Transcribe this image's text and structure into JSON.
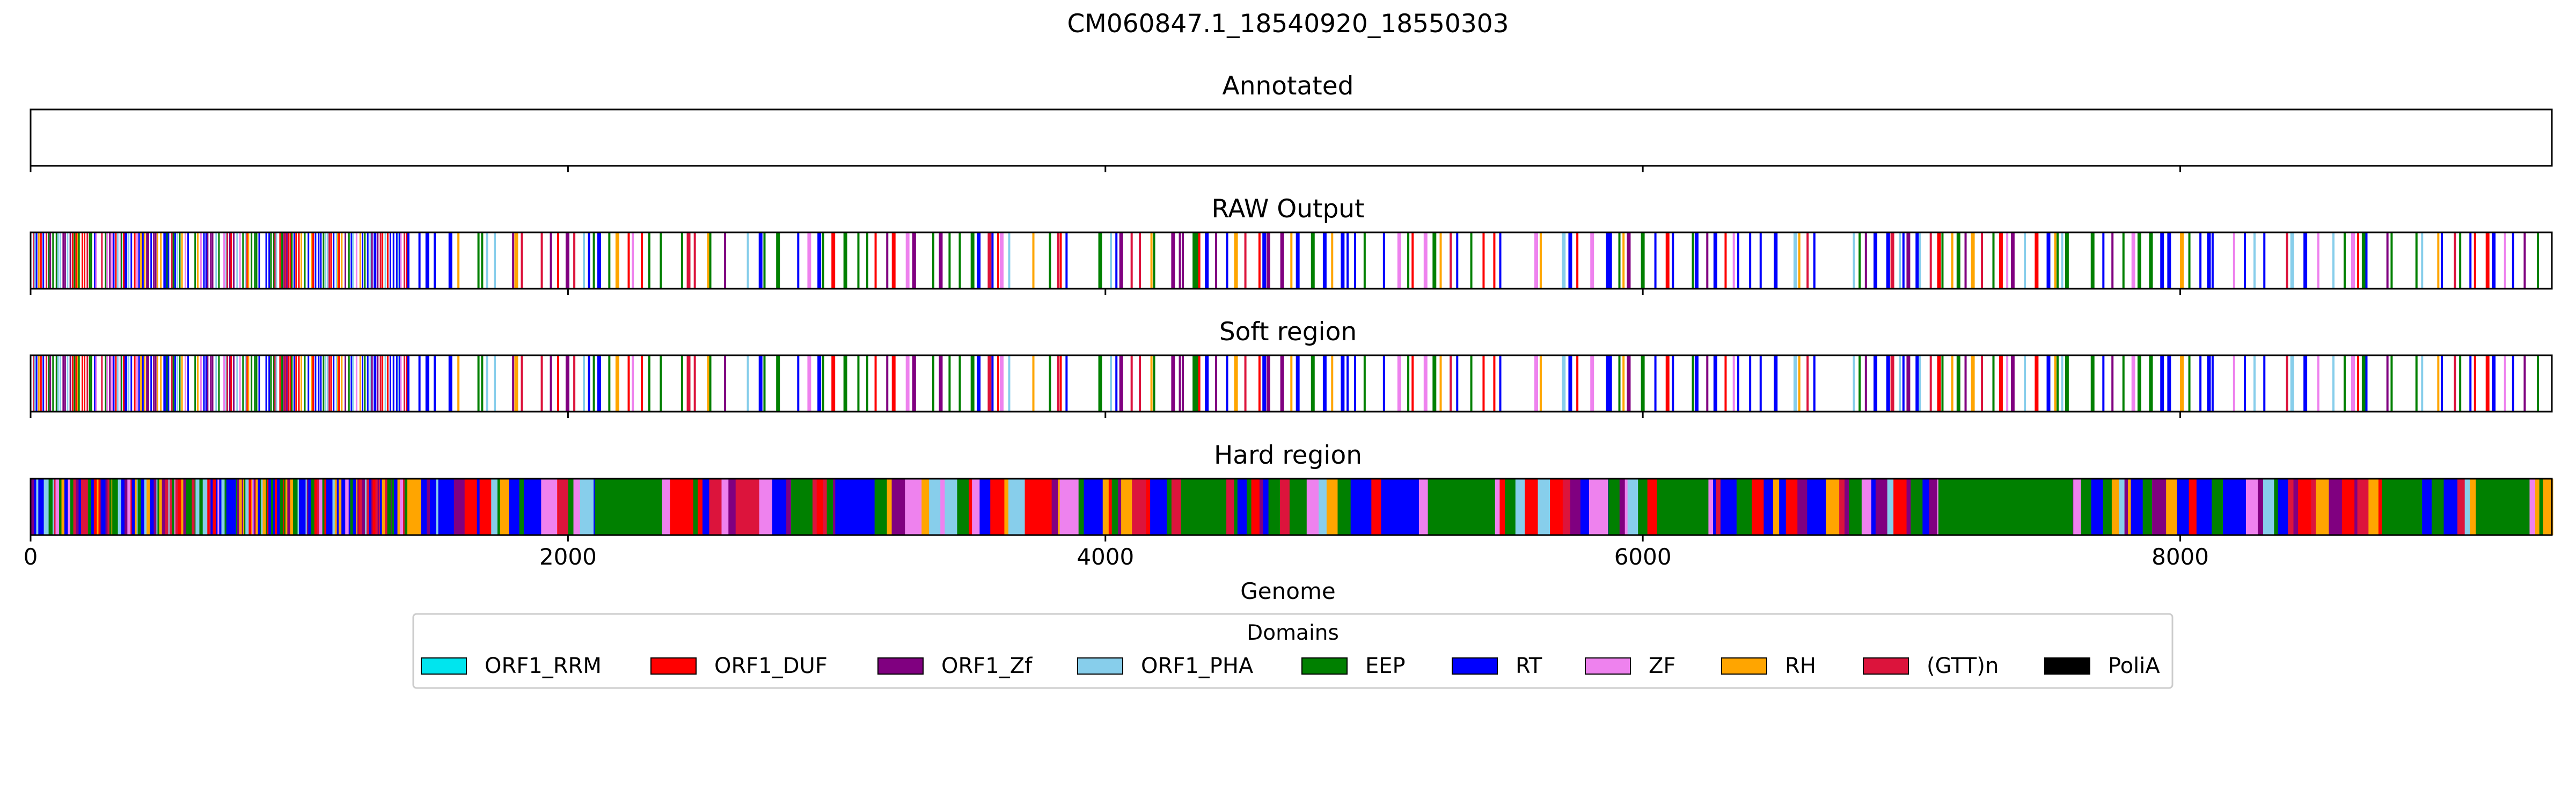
{
  "chart_data": {
    "type": "bar",
    "title": "CM060847.1_18540920_18550303",
    "xlabel": "Genome",
    "xlim": [
      0,
      9383
    ],
    "xticks": [
      0,
      2000,
      4000,
      6000,
      8000
    ],
    "xtick_labels": [
      "0",
      "2000",
      "4000",
      "6000",
      "8000"
    ],
    "legend": {
      "title": "Domains",
      "placement": "bottom-center",
      "entries": [
        {
          "label": "ORF1_RRM",
          "color": "#00e5ee"
        },
        {
          "label": "ORF1_DUF",
          "color": "#ff0000"
        },
        {
          "label": "ORF1_Zf",
          "color": "#800080"
        },
        {
          "label": "ORF1_PHA",
          "color": "#87ceeb"
        },
        {
          "label": "EEP",
          "color": "#008000"
        },
        {
          "label": "RT",
          "color": "#0000ff"
        },
        {
          "label": "ZF",
          "color": "#ee82ee"
        },
        {
          "label": "RH",
          "color": "#ffa500"
        },
        {
          "label": "(GTT)n",
          "color": "#dc143c"
        },
        {
          "label": "PoliA",
          "color": "#000000"
        }
      ]
    },
    "tracks": [
      {
        "title": "Annotated",
        "mode": "empty"
      },
      {
        "title": "RAW Output",
        "mode": "sparse"
      },
      {
        "title": "Soft region",
        "mode": "sparse"
      },
      {
        "title": "Hard region",
        "mode": "dense"
      }
    ],
    "hard_region_blocks": [
      {
        "start": 1900,
        "end": 1960,
        "domain": "ZF"
      },
      {
        "start": 2100,
        "end": 2350,
        "domain": "EEP"
      },
      {
        "start": 2830,
        "end": 2910,
        "domain": "EEP"
      },
      {
        "start": 3700,
        "end": 3800,
        "domain": "ORF1_DUF"
      },
      {
        "start": 3830,
        "end": 3900,
        "domain": "ZF"
      },
      {
        "start": 4300,
        "end": 4450,
        "domain": "EEP"
      },
      {
        "start": 5200,
        "end": 5450,
        "domain": "EEP"
      },
      {
        "start": 5800,
        "end": 5870,
        "domain": "ZF"
      },
      {
        "start": 6100,
        "end": 6200,
        "domain": "EEP"
      },
      {
        "start": 7100,
        "end": 7600,
        "domain": "EEP"
      },
      {
        "start": 8750,
        "end": 8900,
        "domain": "EEP"
      },
      {
        "start": 9100,
        "end": 9300,
        "domain": "EEP"
      },
      {
        "start": 9350,
        "end": 9383,
        "domain": "RH"
      }
    ]
  }
}
